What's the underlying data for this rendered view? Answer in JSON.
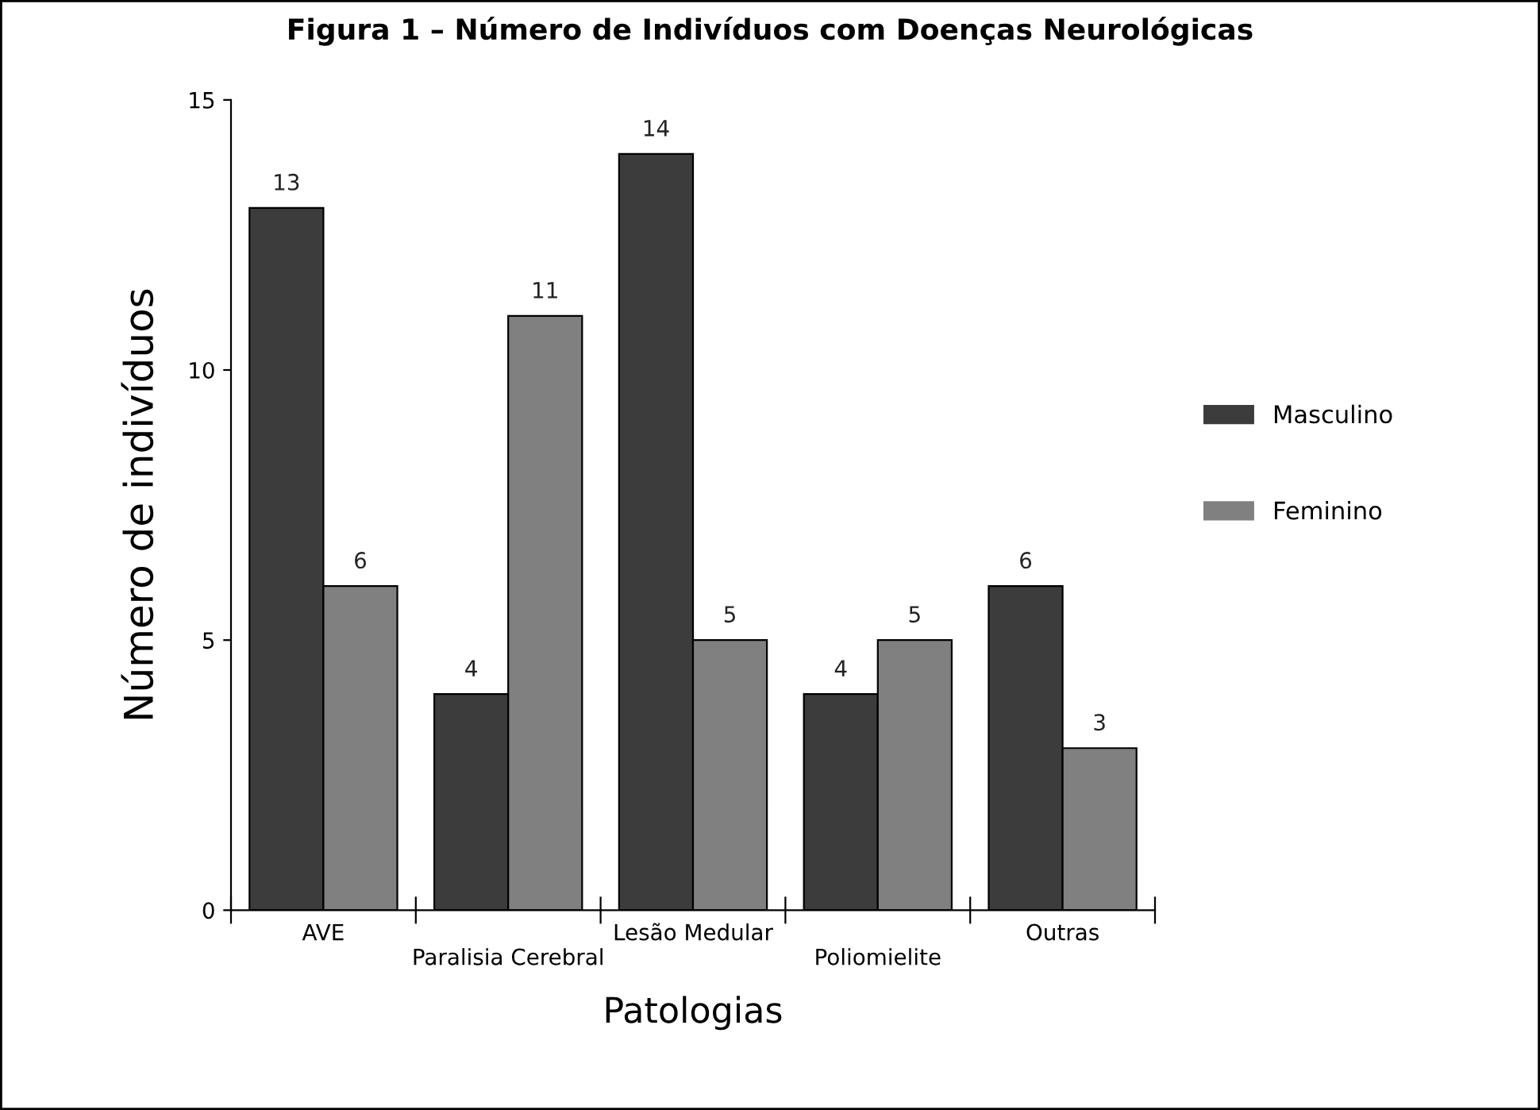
{
  "chart_data": {
    "type": "bar",
    "title": "Figura 1 – Número de Indivíduos com Doenças Neurológicas",
    "xlabel": "Patologias",
    "ylabel": "Número de indivíduos",
    "categories": [
      "AVE",
      "Paralisia Cerebral",
      "Lesão Medular",
      "Poliomielite",
      "Outras"
    ],
    "series": [
      {
        "name": "Masculino",
        "color": "#3c3c3c",
        "values": [
          13,
          4,
          14,
          4,
          6
        ]
      },
      {
        "name": "Feminino",
        "color": "#808080",
        "values": [
          6,
          11,
          5,
          5,
          3
        ]
      }
    ],
    "ylim": [
      0,
      15
    ],
    "yticks": [
      0,
      5,
      10,
      15
    ],
    "data_labels": true,
    "grid": false,
    "legend": "right"
  }
}
